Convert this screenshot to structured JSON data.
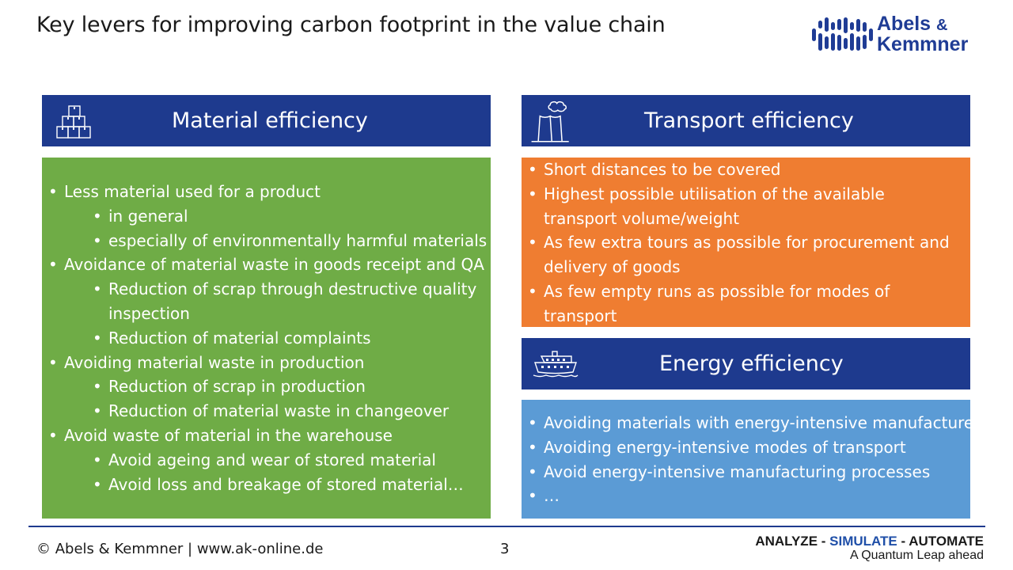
{
  "title": "Key levers for improving carbon footprint in the value chain",
  "logo": {
    "line1": "Abels",
    "amp": "&",
    "line2": "Kemmner",
    "icon": "ak-wave-logo-icon"
  },
  "colors": {
    "header_blue": "#1e3a8e",
    "material_green": "#6fac46",
    "transport_orange": "#ef7d31",
    "energy_blue": "#5b9bd5"
  },
  "material": {
    "header": "Material efficiency",
    "icon": "stacked-boxes-icon",
    "items": [
      {
        "text": "Less material used for a product",
        "level": 1
      },
      {
        "text": "in general",
        "level": 2
      },
      {
        "text": "especially of environmentally harmful materials",
        "level": 2
      },
      {
        "text": "Avoidance of material waste in goods receipt and QA",
        "level": 1
      },
      {
        "text": "Reduction of scrap through destructive quality inspection",
        "level": 2
      },
      {
        "text": "Reduction of material complaints",
        "level": 2
      },
      {
        "text": "Avoiding material waste in production",
        "level": 1
      },
      {
        "text": "Reduction of scrap in production",
        "level": 2
      },
      {
        "text": "Reduction of material waste in changeover",
        "level": 2
      },
      {
        "text": "Avoid waste of material in the warehouse",
        "level": 1
      },
      {
        "text": "Avoid ageing and wear of stored material",
        "level": 2
      },
      {
        "text": "Avoid loss and breakage of stored material…",
        "level": 2
      }
    ]
  },
  "transport": {
    "header": "Transport efficiency",
    "icon": "factory-smoke-icon",
    "items": [
      "Short distances to be covered",
      "Highest possible utilisation of the available transport volume/weight",
      "As few extra tours as possible for procurement and delivery of goods",
      "As few empty runs as possible for modes of transport",
      "…"
    ]
  },
  "energy": {
    "header": "Energy efficiency",
    "icon": "cruise-ship-icon",
    "items": [
      "Avoiding materials with energy-intensive manufacture",
      "Avoiding energy-intensive modes of transport",
      "Avoid energy-intensive manufacturing processes",
      "…"
    ]
  },
  "footer": {
    "copyright": "© Abels & Kemmner | www.ak-online.de",
    "page": "3",
    "tagline_analyze": "ANALYZE - ",
    "tagline_simulate": "SIMULATE",
    "tagline_automate": " - AUTOMATE",
    "subtitle": "A Quantum Leap ahead"
  }
}
